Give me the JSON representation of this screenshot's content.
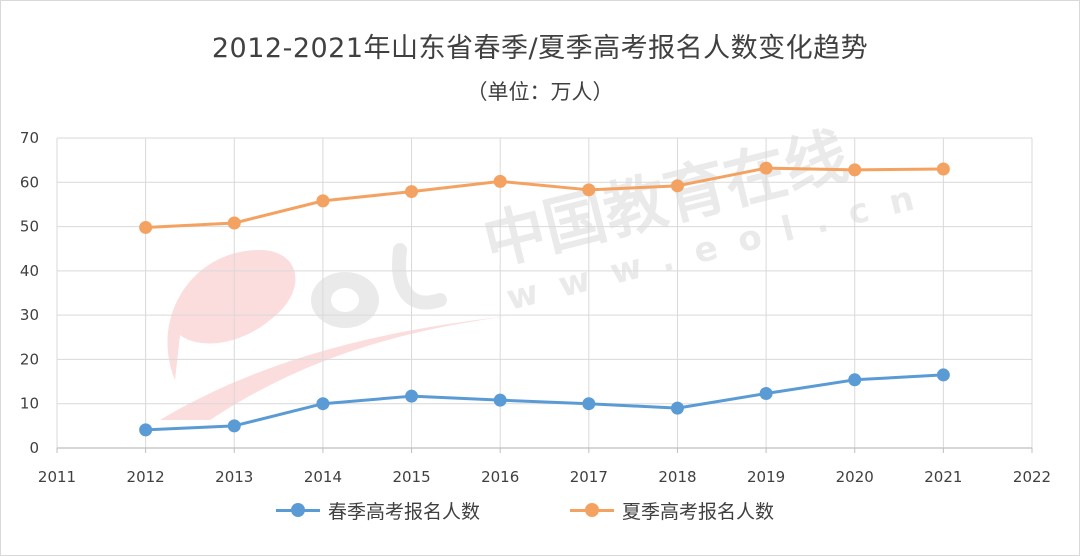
{
  "chart_data": {
    "type": "line",
    "title": "2012-2021年山东省春季/夏季高考报名人数变化趋势",
    "subtitle": "（单位：万人）",
    "x": [
      2012,
      2013,
      2014,
      2015,
      2016,
      2017,
      2018,
      2019,
      2020,
      2021
    ],
    "x_ticks": [
      2011,
      2012,
      2013,
      2014,
      2015,
      2016,
      2017,
      2018,
      2019,
      2020,
      2021,
      2022
    ],
    "xlim": [
      2011,
      2022
    ],
    "y_ticks": [
      0,
      10,
      20,
      30,
      40,
      50,
      60,
      70
    ],
    "ylim": [
      0,
      70
    ],
    "grid": true,
    "legend_position": "bottom",
    "series": [
      {
        "name": "春季高考报名人数",
        "color": "#5b9bd5",
        "values": [
          4.1,
          5.0,
          10.0,
          11.7,
          10.8,
          10.0,
          9.0,
          12.3,
          15.4,
          16.5
        ]
      },
      {
        "name": "夏季高考报名人数",
        "color": "#f4a261",
        "values": [
          49.8,
          50.8,
          55.8,
          57.9,
          60.2,
          58.3,
          59.2,
          63.2,
          62.8,
          63.0
        ]
      }
    ],
    "watermark": "中国教育在线 w w w . e o l . c n"
  }
}
